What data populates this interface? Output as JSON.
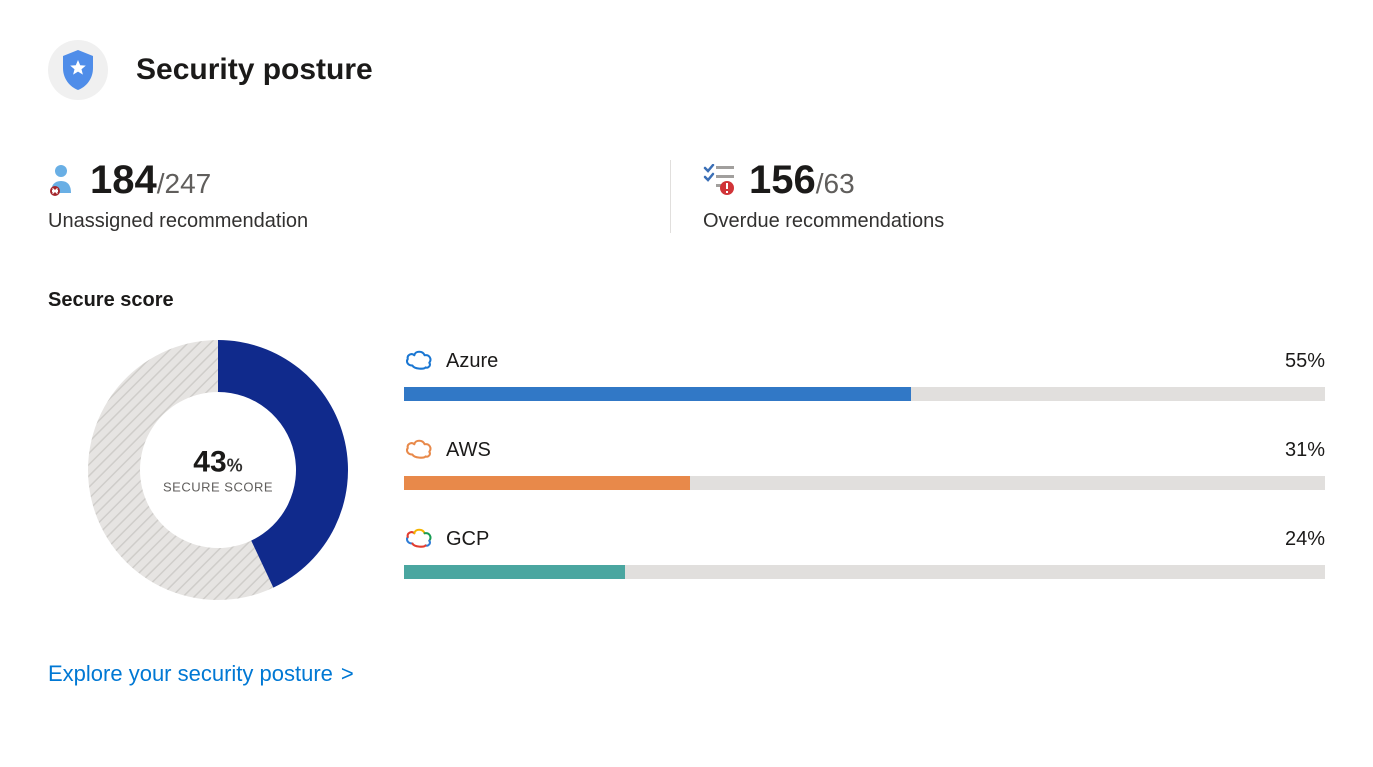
{
  "header": {
    "title": "Security posture",
    "shield_icon_bg": "#f0f0f0",
    "shield_color": "#4f8de9",
    "shield_inner": "#ffffff"
  },
  "stats": {
    "unassigned": {
      "big": "184",
      "divider": "/",
      "small": "247",
      "label": "Unassigned recommendation",
      "icon_color": "#69afe5",
      "icon_badge": "#a4262c"
    },
    "overdue": {
      "big": "156",
      "divider": "/",
      "small": "63",
      "label": "Overdue recommendations",
      "icon_line_color": "#3b6fb6",
      "icon_gray": "#a19f9d",
      "icon_badge": "#d13438"
    }
  },
  "secure_score": {
    "section_label": "Secure score",
    "donut": {
      "percent": 43,
      "percent_label": "43",
      "percent_sign": "%",
      "sub_label": "SECURE SCORE",
      "fill_color": "#102a8c",
      "track_color": "#d2d0ce",
      "thickness": 52,
      "size": 260,
      "hatch_opacity": 0.5
    },
    "providers": [
      {
        "name": "Azure",
        "percent": 55,
        "percent_label": "55%",
        "bar_color": "#3178c6",
        "icon": "azure"
      },
      {
        "name": "AWS",
        "percent": 31,
        "percent_label": "31%",
        "bar_color": "#e8894a",
        "icon": "aws"
      },
      {
        "name": "GCP",
        "percent": 24,
        "percent_label": "24%",
        "bar_color": "#4aa6a0",
        "icon": "gcp"
      }
    ],
    "track_color": "#e1dfdd"
  },
  "link": {
    "text": "Explore your security posture",
    "chevron": ">",
    "color": "#0078d4"
  },
  "colors": {
    "text_primary": "#1b1a19",
    "text_secondary": "#605e5c"
  }
}
